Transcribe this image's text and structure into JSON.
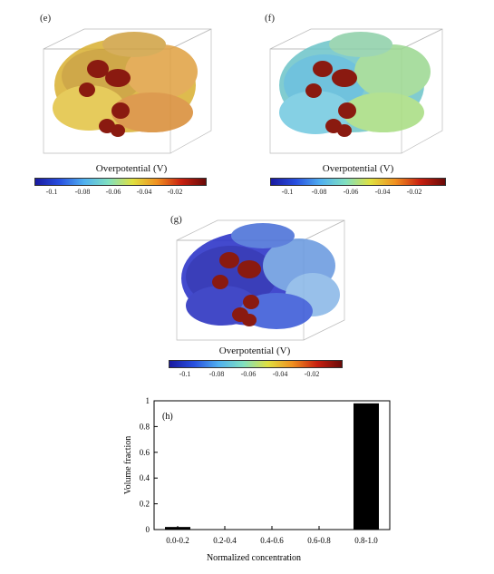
{
  "panels": [
    {
      "id": "e",
      "label": "(e)",
      "colorbar_title": "Overpotential (V)",
      "ticks": [
        "-0.1",
        "-0.08",
        "-0.06",
        "-0.04",
        "-0.02"
      ],
      "dominant_color": "#d9b030"
    },
    {
      "id": "f",
      "label": "(f)",
      "colorbar_title": "Overpotential (V)",
      "ticks": [
        "-0.1",
        "-0.08",
        "-0.06",
        "-0.04",
        "-0.02"
      ],
      "dominant_color": "#6cc4c8"
    },
    {
      "id": "g",
      "label": "(g)",
      "colorbar_title": "Overpotential (V)",
      "ticks": [
        "-0.1",
        "-0.08",
        "-0.06",
        "-0.04",
        "-0.02"
      ],
      "dominant_color": "#2a32c8"
    }
  ],
  "colorbar_gradient": [
    "#1a1aa0",
    "#2850e0",
    "#50b0f0",
    "#80e0c0",
    "#e0e040",
    "#f09020",
    "#c82010",
    "#6a0a08"
  ],
  "chart_data": {
    "type": "bar",
    "label": "(h)",
    "categories": [
      "0.0-0.2",
      "0.2-0.4",
      "0.4-0.6",
      "0.6-0.8",
      "0.8-1.0"
    ],
    "values": [
      0.02,
      0.002,
      0.002,
      0.002,
      0.98
    ],
    "xlabel": "Normalized concentration",
    "ylabel": "Volume fraction",
    "ylim": [
      0,
      1
    ],
    "yticks": [
      "0",
      "0.2",
      "0.4",
      "0.6",
      "0.8",
      "1"
    ],
    "bar_color": "#000000"
  }
}
